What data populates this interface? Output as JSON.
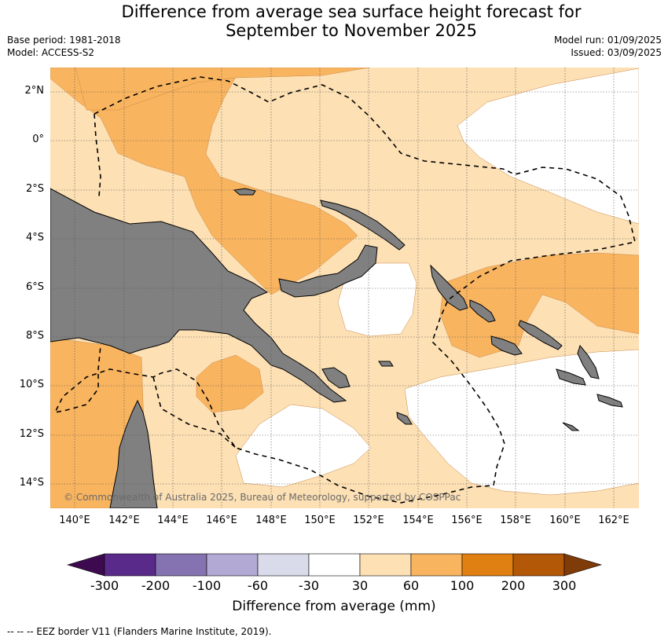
{
  "title_line1": "Difference from average sea surface height forecast for",
  "title_line2": "September to November 2025",
  "base_period": "Base period: 1981-2018",
  "model": "Model: ACCESS-S2",
  "model_run": "Model run: 01/09/2025",
  "issued": "Issued: 03/09/2025",
  "lat_ticks": [
    "2°N",
    "0°",
    "2°S",
    "4°S",
    "6°S",
    "8°S",
    "10°S",
    "12°S",
    "14°S"
  ],
  "lon_ticks": [
    "140°E",
    "142°E",
    "144°E",
    "146°E",
    "148°E",
    "150°E",
    "152°E",
    "154°E",
    "156°E",
    "158°E",
    "160°E",
    "162°E"
  ],
  "copyright": "© Commonwealth of Australia 2025, Bureau of Meteorology, supported by COSPPac",
  "colorbar": {
    "ticks": [
      "-300",
      "-200",
      "-100",
      "-60",
      "-30",
      "30",
      "60",
      "100",
      "200",
      "300"
    ],
    "colors": [
      "#3d0a4f",
      "#5a2a8a",
      "#8473b0",
      "#b2a9d4",
      "#d9dbeb",
      "#ffffff",
      "#fde0b4",
      "#f9b45f",
      "#e07f12",
      "#b35806",
      "#7f3b08"
    ],
    "label": "Difference from average (mm)"
  },
  "footnote": "-- -- -- EEZ border V11 (Flanders Marine Institute, 2019).",
  "colors": {
    "land": "#808080",
    "low_band": "#fde0b4",
    "mid_band": "#f9b45f",
    "neutral": "#ffffff"
  }
}
